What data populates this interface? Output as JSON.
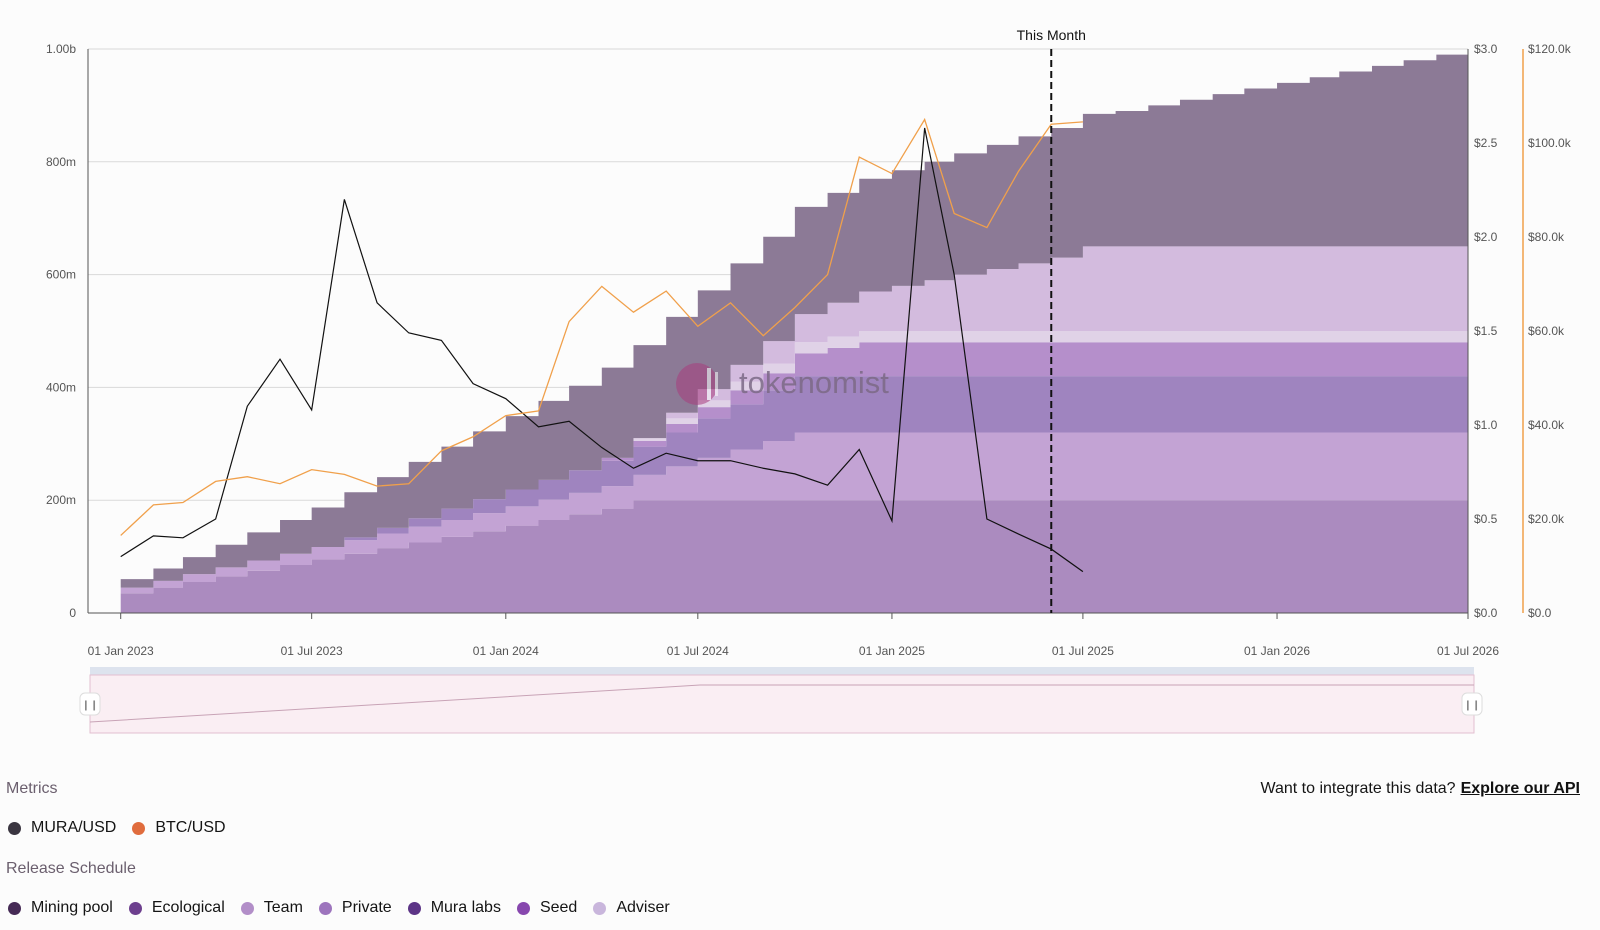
{
  "chart_data": {
    "type": "area",
    "marker_label": "This Month",
    "marker_date": "2025-06-01",
    "watermark": "tokenomist",
    "x_ticks": [
      "01 Jan 2023",
      "01 Jul 2023",
      "01 Jan 2024",
      "01 Jul 2024",
      "01 Jan 2025",
      "01 Jul 2025",
      "01 Jan 2026",
      "01 Jul 2026"
    ],
    "y_left": {
      "ticks": [
        "0",
        "200m",
        "400m",
        "600m",
        "800m",
        "1.00b"
      ],
      "ylim": [
        0,
        1000000000
      ]
    },
    "y_right_price": {
      "ticks": [
        "$0.0",
        "$0.5",
        "$1.0",
        "$1.5",
        "$2.0",
        "$2.5",
        "$3.0"
      ],
      "ylim": [
        0,
        3
      ]
    },
    "y_right_btc": {
      "ticks": [
        "$0.0",
        "$20.0k",
        "$40.0k",
        "$60.0k",
        "$80.0k",
        "$100.0k",
        "$120.0k"
      ],
      "ylim": [
        0,
        120000
      ]
    },
    "release_series": [
      {
        "name": "Adviser",
        "color": "#ab8bbf",
        "values": [
          35,
          45,
          55,
          65,
          75,
          85,
          95,
          105,
          115,
          125,
          135,
          145,
          155,
          165,
          175,
          185,
          200,
          200,
          200,
          200,
          200,
          200,
          200,
          200,
          200,
          200,
          200,
          200,
          200,
          200,
          200,
          200,
          200,
          200,
          200,
          200,
          200,
          200,
          200,
          200,
          200,
          200,
          200
        ]
      },
      {
        "name": "Team",
        "color": "#c3a3d4",
        "values": [
          10,
          12,
          14,
          16,
          18,
          20,
          22,
          24,
          26,
          28,
          30,
          32,
          34,
          36,
          38,
          40,
          45,
          60,
          75,
          90,
          105,
          120,
          120,
          120,
          120,
          120,
          120,
          120,
          120,
          120,
          120,
          120,
          120,
          120,
          120,
          120,
          120,
          120,
          120,
          120,
          120,
          120,
          120
        ]
      },
      {
        "name": "Seed",
        "color": "#9f84bf",
        "values": [
          0,
          0,
          0,
          0,
          0,
          0,
          0,
          5,
          10,
          15,
          20,
          25,
          30,
          35,
          40,
          45,
          50,
          60,
          70,
          80,
          90,
          100,
          100,
          100,
          100,
          100,
          100,
          100,
          100,
          100,
          100,
          100,
          100,
          100,
          100,
          100,
          100,
          100,
          100,
          100,
          100,
          100,
          100
        ]
      },
      {
        "name": "Private",
        "color": "#b58fcb",
        "values": [
          0,
          0,
          0,
          0,
          0,
          0,
          0,
          0,
          0,
          0,
          0,
          0,
          0,
          0,
          0,
          5,
          10,
          15,
          20,
          25,
          30,
          40,
          50,
          60,
          60,
          60,
          60,
          60,
          60,
          60,
          60,
          60,
          60,
          60,
          60,
          60,
          60,
          60,
          60,
          60,
          60,
          60,
          60
        ]
      },
      {
        "name": "Mura labs",
        "color": "#e0d2e7",
        "values": [
          0,
          0,
          0,
          0,
          0,
          0,
          0,
          0,
          0,
          0,
          0,
          0,
          0,
          0,
          0,
          0,
          5,
          10,
          12,
          15,
          17,
          20,
          20,
          20,
          20,
          20,
          20,
          20,
          20,
          20,
          20,
          20,
          20,
          20,
          20,
          20,
          20,
          20,
          20,
          20,
          20,
          20,
          20
        ]
      },
      {
        "name": "Team",
        "color": "#d3bbde",
        "values": [
          0,
          0,
          0,
          0,
          0,
          0,
          0,
          0,
          0,
          0,
          0,
          0,
          0,
          0,
          0,
          0,
          0,
          10,
          20,
          30,
          40,
          50,
          60,
          70,
          80,
          90,
          100,
          110,
          120,
          130,
          150,
          150,
          150,
          150,
          150,
          150,
          150,
          150,
          150,
          150,
          150,
          150,
          150
        ]
      },
      {
        "name": "Mining pool",
        "color": "#8c7a96",
        "values": [
          15,
          22,
          30,
          40,
          50,
          60,
          70,
          80,
          90,
          100,
          110,
          120,
          130,
          140,
          150,
          160,
          165,
          170,
          175,
          180,
          185,
          190,
          195,
          200,
          205,
          210,
          215,
          220,
          225,
          230,
          235,
          240,
          250,
          260,
          270,
          280,
          290,
          300,
          310,
          320,
          330,
          340,
          350
        ]
      }
    ],
    "mura_usd": {
      "name": "MURA/USD",
      "points": [
        [
          "2023-01-01",
          0.3
        ],
        [
          "2023-02-01",
          0.41
        ],
        [
          "2023-03-01",
          0.4
        ],
        [
          "2023-04-01",
          0.5
        ],
        [
          "2023-05-01",
          1.1
        ],
        [
          "2023-06-01",
          1.35
        ],
        [
          "2023-07-01",
          1.08
        ],
        [
          "2023-08-01",
          2.2
        ],
        [
          "2023-09-01",
          1.65
        ],
        [
          "2023-10-01",
          1.49
        ],
        [
          "2023-11-01",
          1.45
        ],
        [
          "2023-12-01",
          1.22
        ],
        [
          "2024-01-01",
          1.14
        ],
        [
          "2024-02-01",
          0.99
        ],
        [
          "2024-03-01",
          1.02
        ],
        [
          "2024-04-01",
          0.88
        ],
        [
          "2024-05-01",
          0.77
        ],
        [
          "2024-06-01",
          0.85
        ],
        [
          "2024-07-01",
          0.81
        ],
        [
          "2024-08-01",
          0.81
        ],
        [
          "2024-09-01",
          0.77
        ],
        [
          "2024-10-01",
          0.74
        ],
        [
          "2024-11-01",
          0.68
        ],
        [
          "2024-12-01",
          0.87
        ],
        [
          "2025-01-01",
          0.49
        ],
        [
          "2025-02-01",
          2.58
        ],
        [
          "2025-03-01",
          1.8
        ],
        [
          "2025-04-01",
          0.5
        ],
        [
          "2025-05-01",
          0.42
        ],
        [
          "2025-06-01",
          0.34
        ],
        [
          "2025-07-01",
          0.22
        ]
      ]
    },
    "btc_usd": {
      "name": "BTC/USD",
      "points": [
        [
          "2023-01-01",
          16500
        ],
        [
          "2023-02-01",
          23000
        ],
        [
          "2023-03-01",
          23500
        ],
        [
          "2023-04-01",
          28000
        ],
        [
          "2023-05-01",
          29000
        ],
        [
          "2023-06-01",
          27500
        ],
        [
          "2023-07-01",
          30500
        ],
        [
          "2023-08-01",
          29500
        ],
        [
          "2023-09-01",
          27000
        ],
        [
          "2023-10-01",
          27500
        ],
        [
          "2023-11-01",
          34500
        ],
        [
          "2023-12-01",
          37500
        ],
        [
          "2024-01-01",
          42000
        ],
        [
          "2024-02-01",
          43000
        ],
        [
          "2024-03-01",
          62000
        ],
        [
          "2024-04-01",
          69500
        ],
        [
          "2024-05-01",
          64000
        ],
        [
          "2024-06-01",
          68500
        ],
        [
          "2024-07-01",
          61000
        ],
        [
          "2024-08-01",
          66000
        ],
        [
          "2024-09-01",
          59000
        ],
        [
          "2024-10-01",
          65000
        ],
        [
          "2024-11-01",
          72000
        ],
        [
          "2024-12-01",
          97000
        ],
        [
          "2025-01-01",
          93500
        ],
        [
          "2025-02-01",
          105000
        ],
        [
          "2025-03-01",
          85000
        ],
        [
          "2025-04-01",
          82000
        ],
        [
          "2025-05-01",
          94000
        ],
        [
          "2025-06-01",
          104000
        ],
        [
          "2025-07-01",
          104500
        ]
      ]
    },
    "x_range": [
      "2022-12-01",
      "2026-07-01"
    ],
    "legend_placement": "bottom",
    "grid": true
  },
  "metrics": {
    "title": "Metrics",
    "items": [
      {
        "label": "MURA/USD",
        "color": "#3a3540"
      },
      {
        "label": "BTC/USD",
        "color": "#e06c3d"
      }
    ]
  },
  "release": {
    "title": "Release Schedule",
    "items": [
      {
        "label": "Mining pool",
        "color": "#452a55"
      },
      {
        "label": "Ecological",
        "color": "#6d3f8e"
      },
      {
        "label": "Team",
        "color": "#b28ec8"
      },
      {
        "label": "Private",
        "color": "#9d74bd"
      },
      {
        "label": "Mura labs",
        "color": "#5c3486"
      },
      {
        "label": "Seed",
        "color": "#8747ae"
      },
      {
        "label": "Adviser",
        "color": "#c9b6dc"
      }
    ]
  },
  "api": {
    "prompt": "Want to integrate this data?",
    "link": "Explore our API"
  }
}
